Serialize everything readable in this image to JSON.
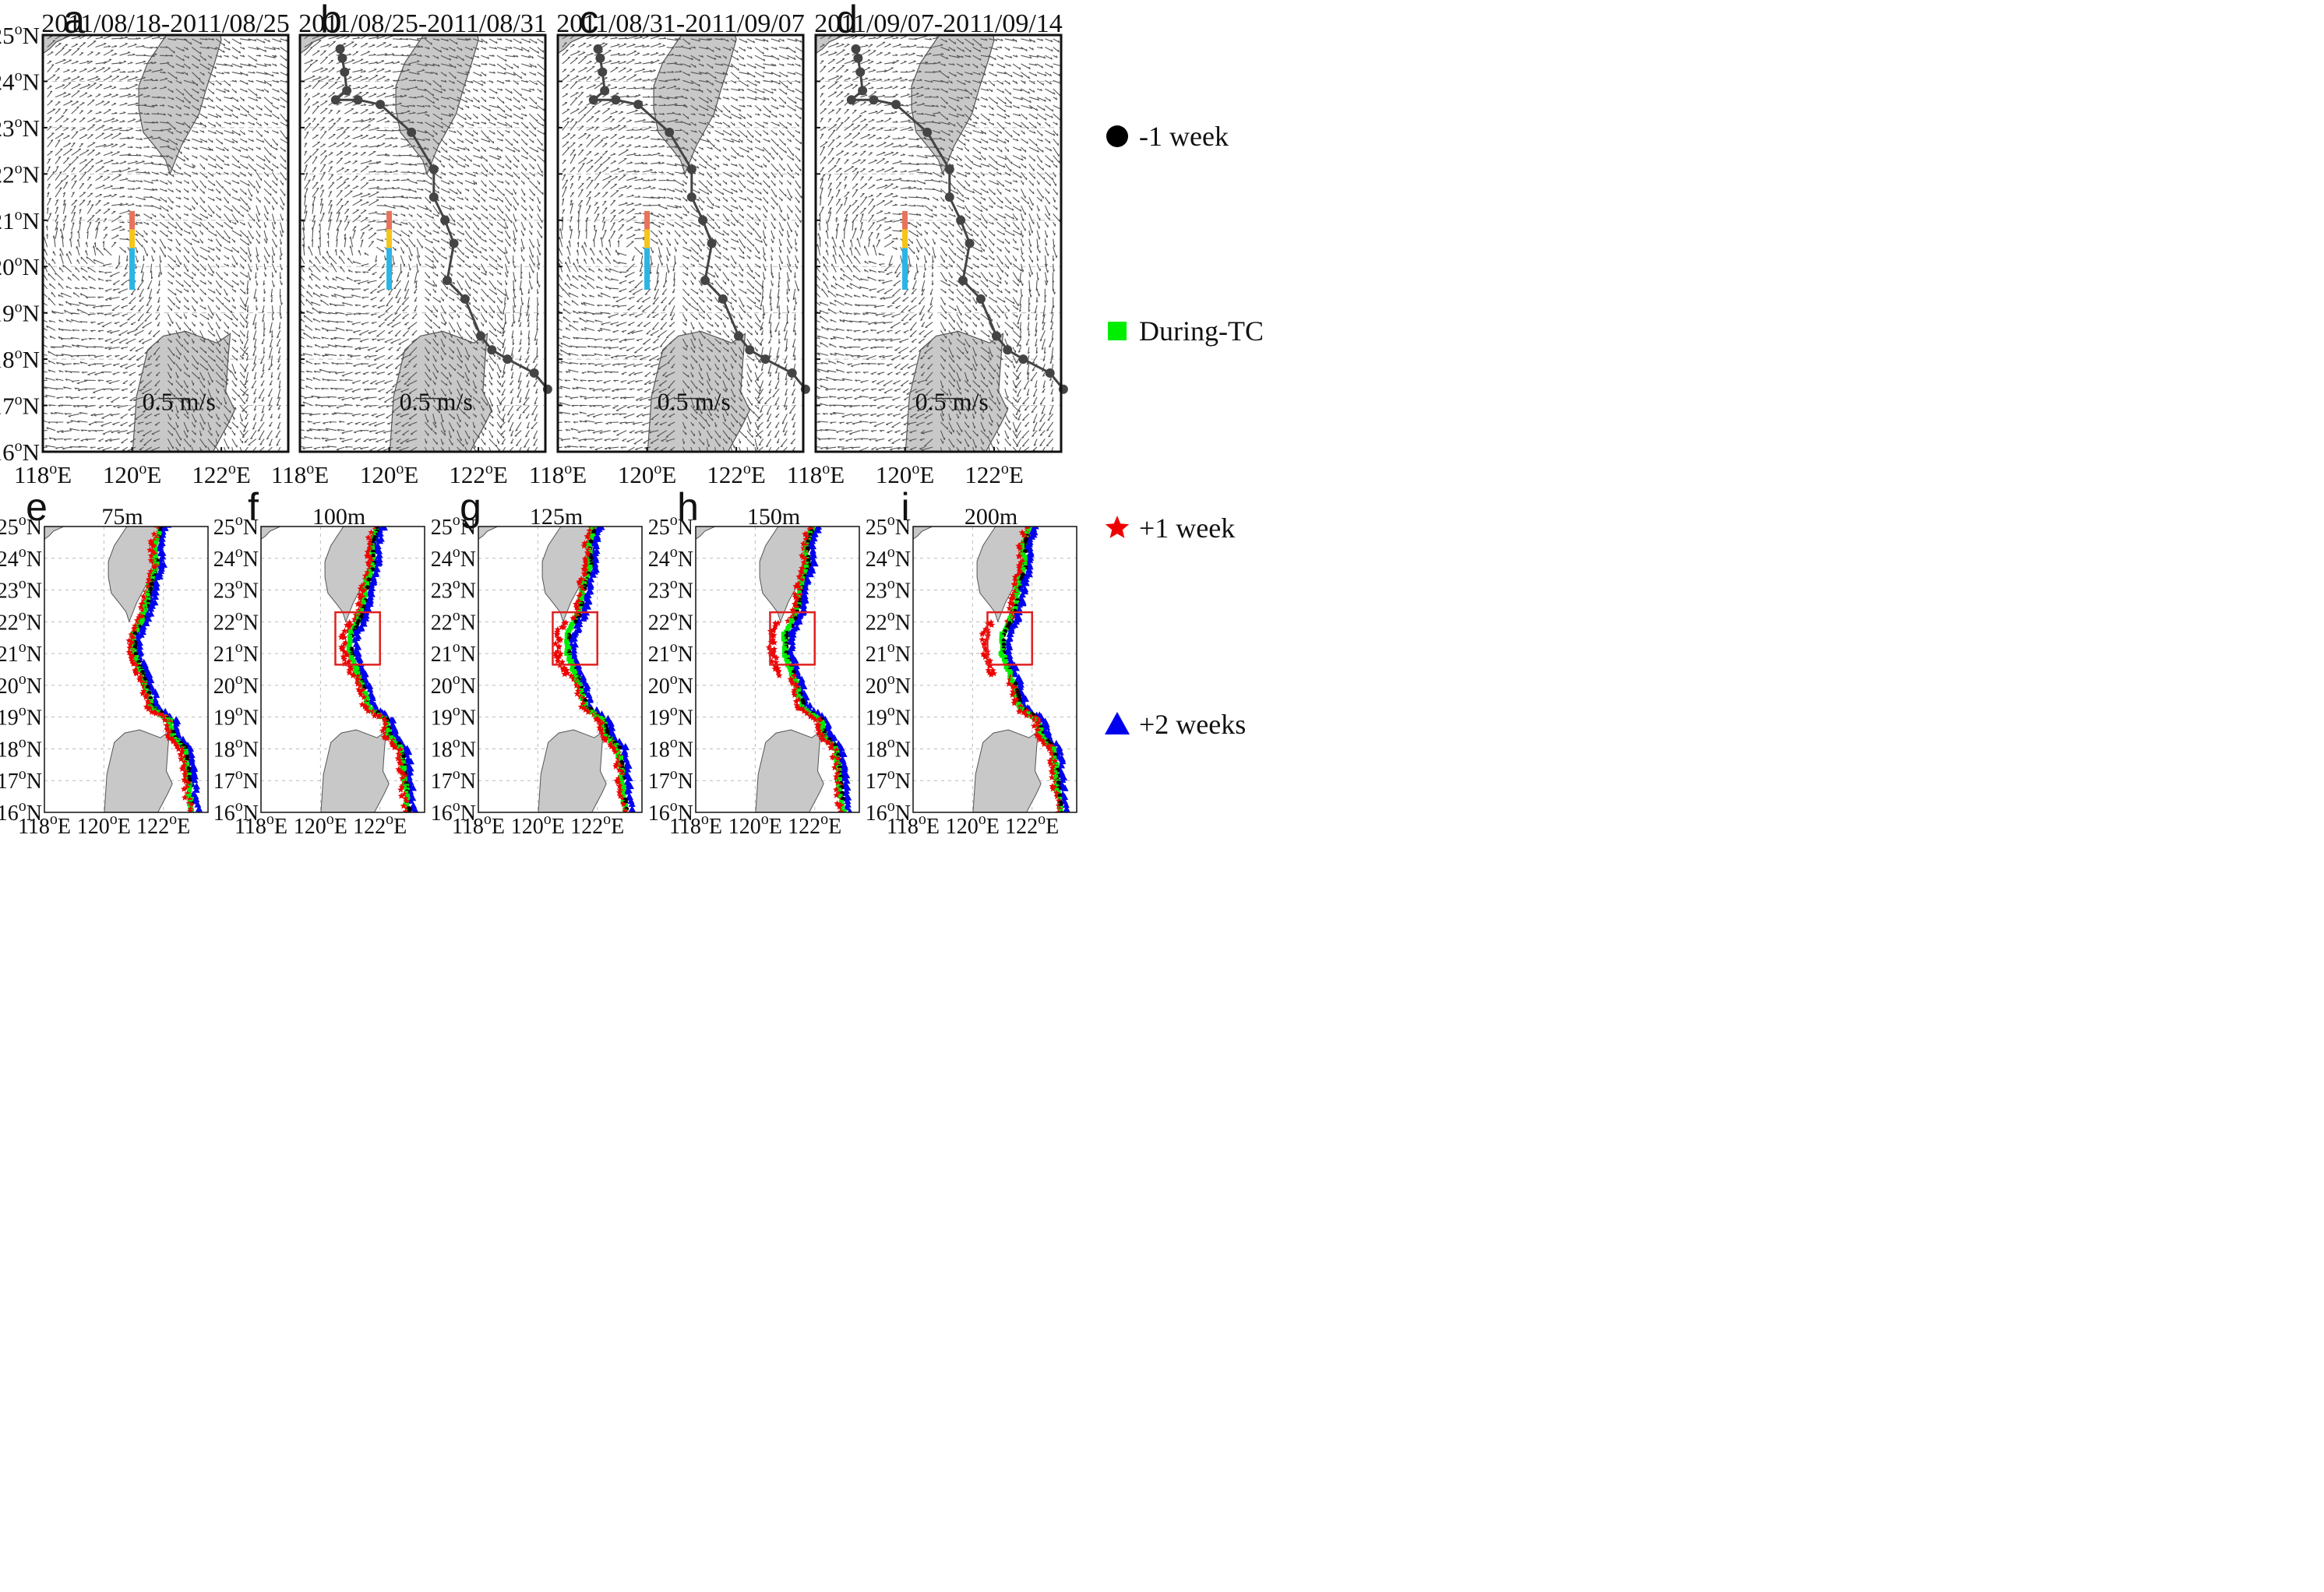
{
  "top_panels": [
    {
      "letter": "a",
      "title": "2011/08/18-2011/08/25",
      "scale_label": "0.5 m/s",
      "show_track": false
    },
    {
      "letter": "b",
      "title": "2011/08/25-2011/08/31",
      "scale_label": "0.5 m/s",
      "show_track": true
    },
    {
      "letter": "c",
      "title": "2011/08/31-2011/09/07",
      "scale_label": "0.5 m/s",
      "show_track": true
    },
    {
      "letter": "d",
      "title": "2011/09/07-2011/09/14",
      "scale_label": "0.5 m/s",
      "show_track": true
    }
  ],
  "bottom_panels": [
    {
      "letter": "e",
      "title": "75m",
      "box": false
    },
    {
      "letter": "f",
      "title": "100m",
      "box": true
    },
    {
      "letter": "g",
      "title": "125m",
      "box": true
    },
    {
      "letter": "h",
      "title": "150m",
      "box": true
    },
    {
      "letter": "i",
      "title": "200m",
      "box": true
    }
  ],
  "axes": {
    "lat_ticks": [
      "25",
      "24",
      "23",
      "22",
      "21",
      "20",
      "19",
      "18",
      "17",
      "16"
    ],
    "lon_ticks": [
      "118",
      "120",
      "122"
    ],
    "lat_suffix": "N",
    "lon_suffix": "E",
    "degree": "o",
    "lon_range": [
      118,
      123.5
    ],
    "lat_range": [
      16,
      25
    ]
  },
  "legend": [
    {
      "marker": "circle",
      "label": "-1 week",
      "color": "#000000"
    },
    {
      "marker": "square",
      "label": "During-TC",
      "color": "#00ee00"
    },
    {
      "marker": "star",
      "label": "+1 week",
      "color": "#ee0000"
    },
    {
      "marker": "triangle",
      "label": "+2 weeks",
      "color": "#0000ee"
    }
  ],
  "section_colors": [
    "#e8735a",
    "#f5c518",
    "#2bb5e6"
  ],
  "land_color": "#c8c8c8",
  "box_color": "#e02020",
  "track": [
    [
      118.9,
      24.7
    ],
    [
      118.95,
      24.5
    ],
    [
      119.0,
      24.2
    ],
    [
      119.05,
      23.8
    ],
    [
      118.8,
      23.6
    ],
    [
      119.3,
      23.6
    ],
    [
      119.8,
      23.5
    ],
    [
      120.5,
      22.9
    ],
    [
      121.0,
      22.1
    ],
    [
      121.0,
      21.5
    ],
    [
      121.25,
      21.0
    ],
    [
      121.45,
      20.5
    ],
    [
      121.3,
      19.7
    ],
    [
      121.7,
      19.3
    ],
    [
      122.05,
      18.5
    ],
    [
      122.3,
      18.2
    ],
    [
      122.65,
      18.0
    ],
    [
      123.25,
      17.7
    ],
    [
      123.55,
      17.35
    ]
  ]
}
